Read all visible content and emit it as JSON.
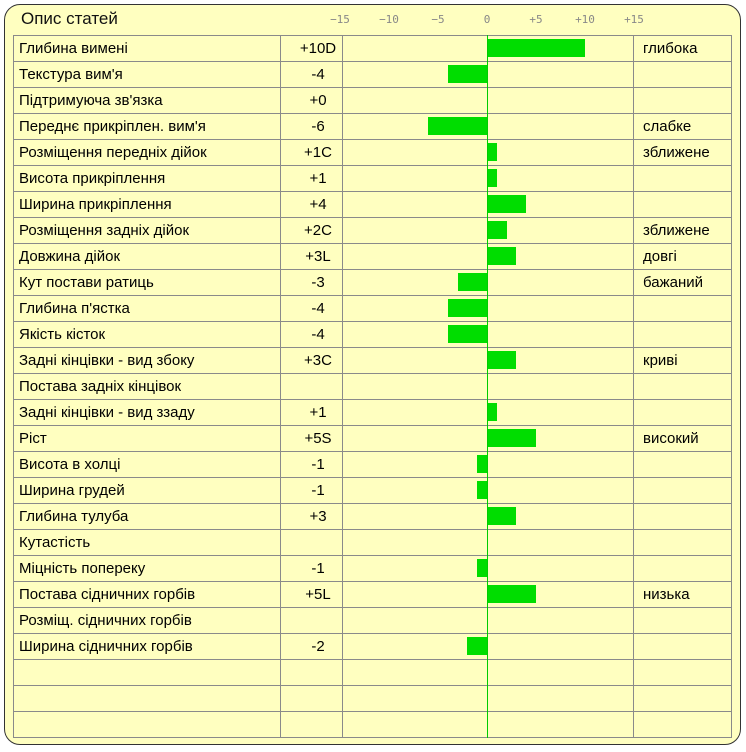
{
  "title": "Опис статей",
  "chart_data": {
    "type": "bar",
    "orientation": "horizontal",
    "xlim": [
      -15,
      15
    ],
    "ticks": [
      "−15",
      "−10",
      "−5",
      "0",
      "+5",
      "+10",
      "+15"
    ],
    "tick_values": [
      -15,
      -10,
      -5,
      0,
      5,
      10,
      15
    ],
    "colors": {
      "bar": "#00dd00",
      "zero_line": "#00cc00",
      "background": "#ffffc0"
    },
    "rows": [
      {
        "name": "Глибина вимені",
        "label": "+10D",
        "value": 10,
        "desc": "глибока"
      },
      {
        "name": "Текстура вим'я",
        "label": "-4",
        "value": -4,
        "desc": ""
      },
      {
        "name": "Підтримуюча зв'язка",
        "label": "+0",
        "value": 0,
        "desc": ""
      },
      {
        "name": "Переднє прикріплен. вим'я",
        "label": "-6",
        "value": -6,
        "desc": "слабке"
      },
      {
        "name": "Розміщення передніх дійок",
        "label": "+1C",
        "value": 1,
        "desc": "зближене"
      },
      {
        "name": "Висота прикріплення",
        "label": "+1",
        "value": 1,
        "desc": ""
      },
      {
        "name": "Ширина прикріплення",
        "label": "+4",
        "value": 4,
        "desc": ""
      },
      {
        "name": "Розміщення задніх дійок",
        "label": "+2C",
        "value": 2,
        "desc": "зближене"
      },
      {
        "name": "Довжина дійок",
        "label": "+3L",
        "value": 3,
        "desc": "довгі"
      },
      {
        "name": "Кут постави ратиць",
        "label": "-3",
        "value": -3,
        "desc": "бажаний"
      },
      {
        "name": "Глибина п'ястка",
        "label": "-4",
        "value": -4,
        "desc": ""
      },
      {
        "name": "Якість кісток",
        "label": "-4",
        "value": -4,
        "desc": ""
      },
      {
        "name": "Задні кінцівки - вид збоку",
        "label": "+3C",
        "value": 3,
        "desc": "криві"
      },
      {
        "name": "Постава задніх кінцівок",
        "label": "",
        "value": null,
        "desc": ""
      },
      {
        "name": "Задні кінцівки - вид ззаду",
        "label": "+1",
        "value": 1,
        "desc": ""
      },
      {
        "name": "Ріст",
        "label": "+5S",
        "value": 5,
        "desc": "високий"
      },
      {
        "name": "Висота в холці",
        "label": "-1",
        "value": -1,
        "desc": ""
      },
      {
        "name": "Ширина грудей",
        "label": "-1",
        "value": -1,
        "desc": ""
      },
      {
        "name": "Глибина тулуба",
        "label": "+3",
        "value": 3,
        "desc": ""
      },
      {
        "name": "Кутастість",
        "label": "",
        "value": null,
        "desc": ""
      },
      {
        "name": "Міцність попереку",
        "label": "-1",
        "value": -1,
        "desc": ""
      },
      {
        "name": "Постава сідничних горбів",
        "label": "+5L",
        "value": 5,
        "desc": "низька"
      },
      {
        "name": "Розміщ. сідничних горбів",
        "label": "",
        "value": null,
        "desc": ""
      },
      {
        "name": "Ширина сідничних горбів",
        "label": "-2",
        "value": -2,
        "desc": ""
      }
    ],
    "empty_rows": 3
  }
}
